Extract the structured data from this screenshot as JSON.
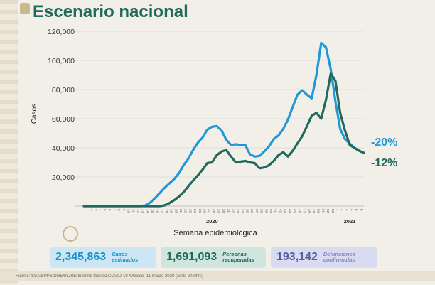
{
  "header": {
    "title": "Escenario nacional"
  },
  "chart_data": {
    "type": "line",
    "xlabel": "Semana epidemiológica",
    "ylabel": "Casos",
    "ylim": [
      0,
      120000
    ],
    "yticks": [
      20000,
      40000,
      60000,
      80000,
      100000,
      120000
    ],
    "ytick_labels": [
      "20,000",
      "40,000",
      "60,000",
      "80,000",
      "100,000",
      "120,000"
    ],
    "year_labels": [
      {
        "label": "2020",
        "week": 28
      },
      {
        "label": "2021",
        "week": 57
      }
    ],
    "grid": true,
    "x": [
      1,
      2,
      3,
      4,
      5,
      6,
      7,
      8,
      9,
      10,
      11,
      12,
      13,
      14,
      15,
      16,
      17,
      18,
      19,
      20,
      21,
      22,
      23,
      24,
      25,
      26,
      27,
      28,
      29,
      30,
      31,
      32,
      33,
      34,
      35,
      36,
      37,
      38,
      39,
      40,
      41,
      42,
      43,
      44,
      45,
      46,
      47,
      48,
      49,
      50,
      51,
      52,
      53,
      54,
      55,
      56,
      57,
      58,
      59,
      60
    ],
    "series": [
      {
        "color": "#1e98d6",
        "values": [
          0,
          0,
          0,
          0,
          0,
          0,
          0,
          0,
          0,
          0,
          0,
          0,
          0,
          500,
          2500,
          5500,
          9000,
          12500,
          15500,
          18500,
          22500,
          28000,
          32500,
          38500,
          43500,
          47000,
          52500,
          54500,
          55000,
          52000,
          45500,
          42000,
          42500,
          42000,
          42000,
          35500,
          34000,
          34500,
          37500,
          41000,
          46000,
          48500,
          53000,
          59500,
          68000,
          76500,
          79500,
          76500,
          74000,
          90000,
          112000,
          109000,
          94000,
          72000,
          53000,
          46000,
          43000,
          40000,
          38000,
          36500
        ],
        "end_label": "-20%"
      },
      {
        "color": "#1f6a5c",
        "values": [
          0,
          0,
          0,
          0,
          0,
          0,
          0,
          0,
          0,
          0,
          0,
          0,
          0,
          0,
          0,
          0,
          0,
          500,
          2000,
          4000,
          6500,
          9500,
          13500,
          17500,
          21000,
          25000,
          29500,
          30000,
          35000,
          37500,
          38500,
          34000,
          30000,
          30500,
          31000,
          30000,
          29500,
          26000,
          26500,
          28000,
          31000,
          35000,
          37000,
          34000,
          38000,
          43000,
          48000,
          55000,
          62000,
          64000,
          60000,
          73000,
          91000,
          86000,
          64000,
          52000,
          42000,
          40000,
          38000,
          36500
        ],
        "end_label": "-12%"
      }
    ]
  },
  "stats": [
    {
      "value": "2,345,863",
      "label_line1": "Casos",
      "label_line2": "estimados"
    },
    {
      "value": "1,691,093",
      "label_line1": "Personas",
      "label_line2": "recuperadas"
    },
    {
      "value": "193,142",
      "label_line1": "Defunciones",
      "label_line2": "confirmadas"
    }
  ],
  "footer": {
    "source": "Fuente: SSA/SPPS/DGE/InDRE/Informe técnico.COVID-19 /México- 11 marzo 2020 (corte 9:00hrs)"
  }
}
